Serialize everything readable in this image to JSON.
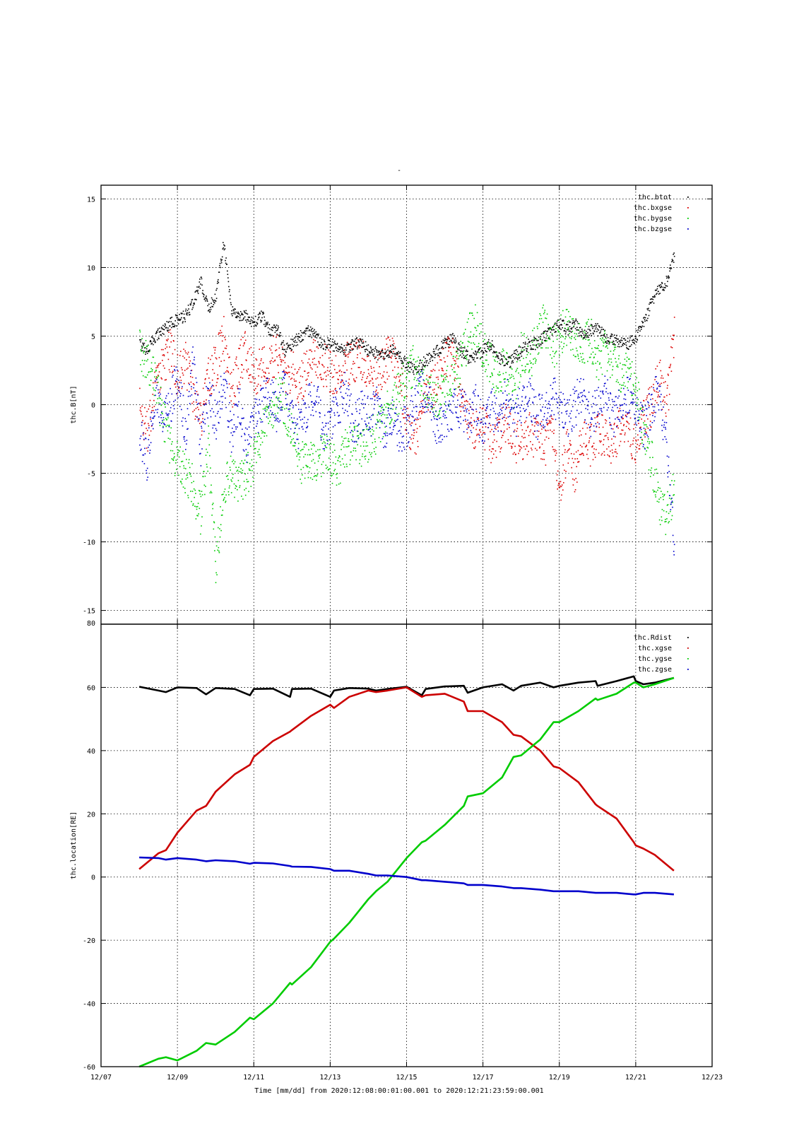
{
  "figure": {
    "top_title": "-",
    "footer": "Time [mm/dd]  from 2020:12:08:00:01:00.001  to  2020:12:21:23:59:00.001"
  },
  "chart_data": [
    {
      "type": "scatter",
      "ylabel": "thc.B[nT]",
      "xlabel": "",
      "ylim": [
        -16,
        16
      ],
      "yticks": [
        -15,
        -10,
        -5,
        0,
        5,
        10,
        15
      ],
      "xlim": [
        "12/07",
        "12/23"
      ],
      "xticks": [
        "12/07",
        "12/09",
        "12/11",
        "12/13",
        "12/15",
        "12/17",
        "12/19",
        "12/21",
        "12/23"
      ],
      "grid": true,
      "legend_position": "top-right",
      "x_days": [
        8.0,
        8.2,
        8.4,
        8.6,
        8.8,
        9.0,
        9.2,
        9.4,
        9.6,
        9.8,
        10.0,
        10.2,
        10.4,
        10.6,
        10.8,
        11.0,
        11.2,
        11.4,
        11.6,
        11.8,
        12.0,
        12.2,
        12.4,
        12.6,
        12.8,
        13.0,
        13.2,
        13.4,
        13.6,
        13.8,
        14.0,
        14.2,
        14.4,
        14.6,
        14.8,
        15.0,
        15.2,
        15.4,
        15.6,
        15.8,
        16.0,
        16.2,
        16.4,
        16.6,
        16.8,
        17.0,
        17.2,
        17.4,
        17.6,
        17.8,
        18.0,
        18.2,
        18.4,
        18.6,
        18.8,
        19.0,
        19.2,
        19.4,
        19.6,
        19.8,
        20.0,
        20.2,
        20.4,
        20.6,
        20.8,
        21.0,
        21.2,
        21.4,
        21.6,
        21.8,
        22.0
      ],
      "series": [
        {
          "name": "thc.btot",
          "color": "#000000",
          "values": [
            4.5,
            4.0,
            5.0,
            5.5,
            6.0,
            6.2,
            6.5,
            7.5,
            9.0,
            7.0,
            8.0,
            12.0,
            7.0,
            6.5,
            6.5,
            6.0,
            6.5,
            5.5,
            5.5,
            4.0,
            4.5,
            5.0,
            5.5,
            5.0,
            4.5,
            4.5,
            4.0,
            4.0,
            4.5,
            4.5,
            4.0,
            3.8,
            3.5,
            4.0,
            3.5,
            3.0,
            2.5,
            3.0,
            3.5,
            4.0,
            4.5,
            4.8,
            4.0,
            3.5,
            3.5,
            4.0,
            4.5,
            3.5,
            3.0,
            3.5,
            4.0,
            4.5,
            4.5,
            5.0,
            5.5,
            6.0,
            5.5,
            6.0,
            5.0,
            5.5,
            5.5,
            5.0,
            4.8,
            4.5,
            4.5,
            5.0,
            6.0,
            7.5,
            8.5,
            9.0,
            11.0
          ]
        },
        {
          "name": "thc.bxgse",
          "color": "#dd0000",
          "values": [
            0.0,
            -2.0,
            1.0,
            3.0,
            4.0,
            2.0,
            3.0,
            1.0,
            -1.0,
            2.0,
            3.0,
            5.0,
            1.0,
            3.0,
            4.0,
            2.0,
            3.0,
            3.0,
            4.0,
            2.0,
            2.5,
            1.5,
            3.0,
            3.5,
            3.0,
            2.5,
            2.0,
            3.0,
            3.0,
            3.5,
            2.5,
            2.0,
            3.0,
            4.0,
            2.0,
            -1.0,
            -2.5,
            0.0,
            1.0,
            2.0,
            3.0,
            4.0,
            1.0,
            -1.0,
            -2.0,
            -1.5,
            -3.0,
            -2.0,
            -1.0,
            -2.5,
            -3.0,
            -2.0,
            -2.5,
            -3.0,
            -1.5,
            -6.0,
            -3.0,
            -5.0,
            -2.0,
            -3.0,
            -2.0,
            -2.5,
            -3.0,
            -1.5,
            -2.0,
            -3.0,
            -1.0,
            0.0,
            2.0,
            0.0,
            5.0
          ]
        },
        {
          "name": "thc.bygse",
          "color": "#00cc00",
          "values": [
            4.0,
            3.0,
            2.0,
            -1.0,
            -3.0,
            -4.0,
            -5.0,
            -6.0,
            -8.0,
            -3.0,
            -12.0,
            -6.0,
            -5.0,
            -6.0,
            -5.0,
            -4.0,
            -2.0,
            -1.0,
            1.0,
            0.0,
            -2.0,
            -4.0,
            -4.5,
            -4.0,
            -3.5,
            -4.0,
            -4.5,
            -3.0,
            -2.5,
            -3.0,
            -2.5,
            -2.0,
            -1.0,
            0.0,
            1.0,
            2.0,
            3.0,
            2.0,
            1.0,
            0.5,
            1.0,
            2.0,
            3.0,
            5.0,
            6.0,
            4.0,
            3.0,
            2.0,
            3.0,
            1.0,
            4.0,
            3.0,
            5.0,
            6.0,
            4.0,
            5.0,
            6.0,
            5.0,
            4.0,
            5.0,
            3.0,
            4.0,
            3.0,
            2.0,
            3.0,
            1.0,
            -2.0,
            -4.0,
            -7.0,
            -8.0,
            -6.0
          ]
        },
        {
          "name": "thc.bzgse",
          "color": "#0000cc",
          "values": [
            -2.0,
            -4.0,
            1.0,
            -1.0,
            0.0,
            2.0,
            -2.0,
            3.0,
            -3.0,
            1.0,
            -1.0,
            2.0,
            -2.0,
            0.0,
            -3.0,
            -1.0,
            0.0,
            1.0,
            -1.0,
            2.0,
            -1.0,
            -2.0,
            0.0,
            1.0,
            -2.0,
            -1.0,
            0.0,
            1.0,
            -1.5,
            -0.5,
            -1.0,
            0.0,
            -2.0,
            -1.0,
            -2.0,
            -1.5,
            0.0,
            1.5,
            0.0,
            -2.0,
            -1.0,
            -0.5,
            0.0,
            -1.0,
            0.0,
            -1.5,
            0.0,
            -1.0,
            0.5,
            -1.0,
            0.0,
            0.5,
            -1.0,
            0.0,
            1.0,
            0.0,
            -1.0,
            0.0,
            1.0,
            -1.0,
            0.0,
            1.0,
            -1.0,
            0.0,
            1.0,
            0.0,
            -2.0,
            0.0,
            1.0,
            -3.0,
            -11.0
          ]
        }
      ]
    },
    {
      "type": "scatter",
      "ylabel": "thc.location[RE]",
      "xlabel": "",
      "ylim": [
        -60,
        80
      ],
      "yticks": [
        -60,
        -40,
        -20,
        0,
        20,
        40,
        60,
        80
      ],
      "xlim": [
        "12/07",
        "12/23"
      ],
      "xticks": [
        "12/07",
        "12/09",
        "12/11",
        "12/13",
        "12/15",
        "12/17",
        "12/19",
        "12/21",
        "12/23"
      ],
      "grid": true,
      "legend_position": "top-right",
      "x_days": [
        8.0,
        8.5,
        8.7,
        9.0,
        9.5,
        9.75,
        10.0,
        10.5,
        10.9,
        11.0,
        11.5,
        11.95,
        12.0,
        12.5,
        13.0,
        13.1,
        13.5,
        14.0,
        14.2,
        14.5,
        15.0,
        15.4,
        15.5,
        16.0,
        16.5,
        16.6,
        17.0,
        17.5,
        17.8,
        18.0,
        18.5,
        18.85,
        19.0,
        19.5,
        19.95,
        20.0,
        20.5,
        20.95,
        21.0,
        21.2,
        21.5,
        22.0
      ],
      "series": [
        {
          "name": "thc.Rdist",
          "color": "#000000",
          "values": [
            60.2,
            59.0,
            58.5,
            60.0,
            59.8,
            57.8,
            59.8,
            59.5,
            57.5,
            59.5,
            59.6,
            57.0,
            59.5,
            59.6,
            57.0,
            59.0,
            59.8,
            59.6,
            59.0,
            59.5,
            60.2,
            57.5,
            59.5,
            60.3,
            60.5,
            58.3,
            60.0,
            61.0,
            59.0,
            60.5,
            61.5,
            60.0,
            60.5,
            61.5,
            62.0,
            60.5,
            62.0,
            63.5,
            62.0,
            61.0,
            61.5,
            63.0
          ]
        },
        {
          "name": "thc.xgse",
          "color": "#cc0000",
          "values": [
            2.5,
            7.5,
            8.5,
            14.0,
            21.0,
            22.5,
            27.0,
            32.5,
            35.5,
            38.0,
            43.0,
            46.0,
            46.5,
            51.0,
            54.5,
            53.5,
            57.0,
            59.0,
            58.5,
            59.0,
            60.0,
            57.0,
            57.5,
            58.0,
            55.5,
            52.5,
            52.5,
            49.0,
            45.0,
            44.5,
            40.0,
            35.0,
            34.5,
            30.0,
            23.0,
            22.5,
            18.5,
            11.0,
            10.0,
            9.0,
            7.0,
            2.0
          ]
        },
        {
          "name": "thc.ygse",
          "color": "#00cc00",
          "values": [
            -60.0,
            -57.5,
            -57.0,
            -58.0,
            -55.0,
            -52.5,
            -53.0,
            -49.0,
            -44.5,
            -45.0,
            -40.0,
            -33.5,
            -34.0,
            -28.5,
            -20.5,
            -19.5,
            -14.5,
            -7.0,
            -4.5,
            -1.5,
            6.0,
            11.0,
            11.5,
            16.5,
            22.5,
            25.5,
            26.5,
            31.5,
            38.0,
            38.5,
            43.5,
            49.0,
            49.0,
            52.5,
            56.5,
            56.0,
            58.0,
            61.5,
            61.5,
            60.0,
            61.0,
            63.0
          ]
        },
        {
          "name": "thc.zgse",
          "color": "#0000cc",
          "values": [
            6.2,
            6.0,
            5.5,
            6.0,
            5.5,
            5.0,
            5.3,
            5.0,
            4.2,
            4.5,
            4.3,
            3.5,
            3.3,
            3.2,
            2.5,
            2.0,
            2.0,
            1.0,
            0.5,
            0.5,
            0.0,
            -1.0,
            -1.0,
            -1.5,
            -2.0,
            -2.5,
            -2.5,
            -3.0,
            -3.5,
            -3.5,
            -4.0,
            -4.5,
            -4.5,
            -4.5,
            -5.0,
            -5.0,
            -5.0,
            -5.5,
            -5.5,
            -5.0,
            -5.0,
            -5.5
          ]
        }
      ]
    }
  ]
}
